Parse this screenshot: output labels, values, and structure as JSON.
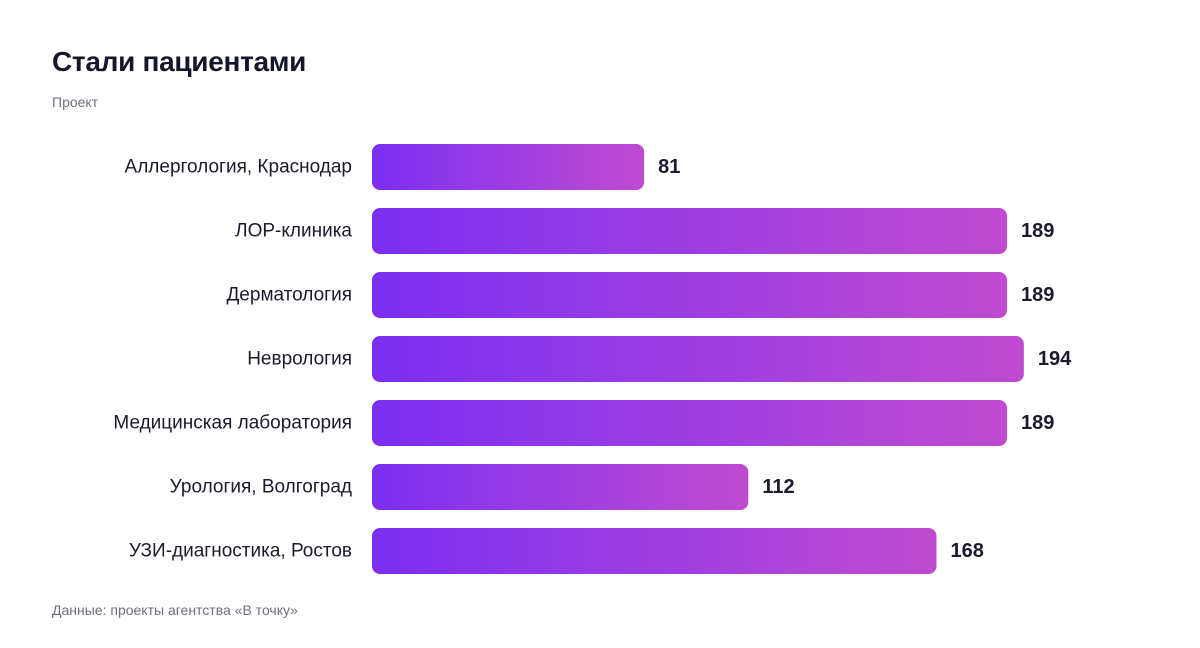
{
  "header": {
    "title": "Стали пациентами",
    "subtitle": "Проект"
  },
  "footer": {
    "note": "Данные: проекты агентства «В точку»"
  },
  "colors": {
    "bar_gradient_start": "#7b2ff2",
    "bar_gradient_end": "#c04bd0",
    "text": "#1b1b2b",
    "muted_text": "#6f6f7d"
  },
  "chart_data": {
    "type": "bar",
    "orientation": "horizontal",
    "title": "Стали пациентами",
    "subtitle": "Проект",
    "categories": [
      "Аллергология, Краснодар",
      "ЛОР-клиника",
      "Дерматология",
      "Неврология",
      "Медицинская лаборатория",
      "Урология, Волгоград",
      "УЗИ-диагностика, Ростов"
    ],
    "values": [
      81,
      189,
      189,
      194,
      189,
      112,
      168
    ],
    "xlabel": "",
    "ylabel": "",
    "grid": false,
    "legend": "none",
    "data_labels": true
  }
}
